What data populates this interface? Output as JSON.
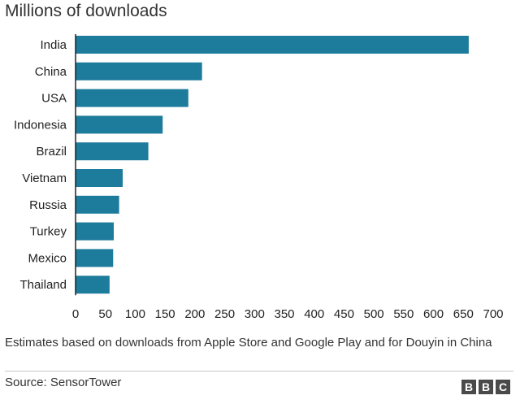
{
  "chart_data": {
    "type": "bar",
    "orientation": "horizontal",
    "title": "Millions of downloads",
    "categories": [
      "India",
      "China",
      "USA",
      "Indonesia",
      "Brazil",
      "Vietnam",
      "Russia",
      "Turkey",
      "Mexico",
      "Thailand"
    ],
    "values": [
      659,
      212,
      189,
      146,
      122,
      79,
      73,
      64,
      63,
      57
    ],
    "xlim": [
      0,
      700
    ],
    "ticks": [
      0,
      50,
      100,
      150,
      200,
      250,
      300,
      350,
      400,
      450,
      500,
      550,
      600,
      650,
      700
    ],
    "grid": false,
    "bar_color": "#1d7b9c"
  },
  "footnote": "Estimates based on downloads from Apple Store and Google Play and for Douyin in China",
  "source": "Source: SensorTower",
  "logo": {
    "letters": [
      "B",
      "B",
      "C"
    ]
  }
}
